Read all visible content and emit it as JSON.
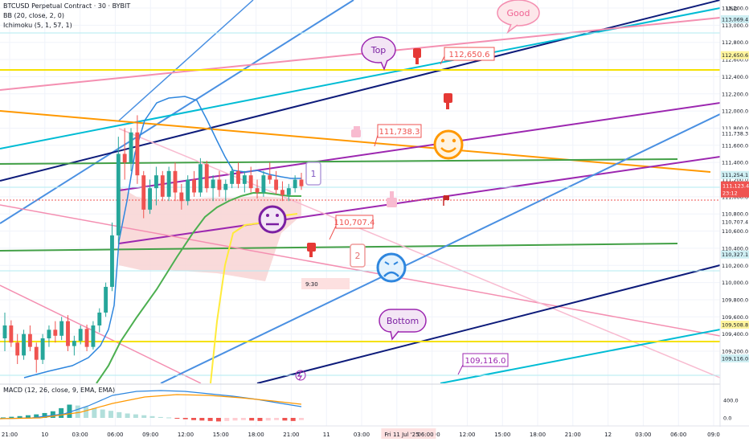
{
  "header": {
    "symbol_line": "BTCUSD Perpetual Contract · 30 · BYBIT",
    "bb_line": "BB (20, close, 2, 0)",
    "ichimoku_line": "Ichimoku (5, 1, 57, 1)",
    "macd_line": "MACD (12, 26, close, 9, EMA, EMA)"
  },
  "price_axis": {
    "currency": "USD",
    "ticks": [
      "113,200.0",
      "113,000.0",
      "112,800.0",
      "112,600.0",
      "112,400.0",
      "112,200.0",
      "112,000.0",
      "111,800.0",
      "111,600.0",
      "111,400.0",
      "111,200.0",
      "111,000.0",
      "110,800.0",
      "110,600.0",
      "110,400.0",
      "110,200.0",
      "110,000.0",
      "109,800.0",
      "109,600.0",
      "109,400.0",
      "109,200.0"
    ],
    "tick_values": [
      113200,
      113000,
      112800,
      112600,
      112400,
      112200,
      112000,
      111800,
      111600,
      111400,
      111200,
      111000,
      110800,
      110600,
      110400,
      110200,
      110000,
      109800,
      109600,
      109400,
      109200
    ],
    "badges": [
      {
        "label": "113,069.4",
        "value": 113069.4,
        "kind": "cyan"
      },
      {
        "label": "112,650.6",
        "value": 112650.6,
        "kind": "yellow"
      },
      {
        "label": "111,738.3",
        "value": 111738.3,
        "kind": "plain"
      },
      {
        "label": "111,254.1",
        "value": 111254.1,
        "kind": "cyan"
      },
      {
        "label": "110,707.4",
        "value": 110707.4,
        "kind": "plain"
      },
      {
        "label": "110,327.1",
        "value": 110327.1,
        "kind": "cyan"
      },
      {
        "label": "109,508.8",
        "value": 109508.8,
        "kind": "yellow"
      },
      {
        "label": "109,116.0",
        "value": 109116.0,
        "kind": "cyan"
      }
    ],
    "current": {
      "label": "111,123.4",
      "value": 111123.4,
      "countdown": "23:12"
    }
  },
  "macd_axis": {
    "ticks": [
      "400.0",
      "0.0"
    ],
    "tick_values": [
      400,
      0
    ]
  },
  "time_axis": {
    "labels": [
      "21:00",
      "10",
      "03:00",
      "06:00",
      "09:00",
      "12:00",
      "15:00",
      "18:00",
      "21:00",
      "11",
      "03:00",
      "06:00",
      "09:00",
      "12:00",
      "15:00",
      "18:00",
      "21:00",
      "12",
      "03:00",
      "06:00",
      "09:0"
    ],
    "hours": [
      0,
      3,
      6,
      9,
      12,
      15,
      18,
      21,
      24,
      27,
      30,
      33,
      36,
      39,
      42,
      45,
      48,
      51,
      54,
      57,
      60
    ],
    "highlight": "Fri 11 Jul '25",
    "highlight_hour": 34,
    "countdown_hour": 24,
    "countdown_label": "9:30"
  },
  "annotations": {
    "good": "Good",
    "top": "Top",
    "bottom": "Bottom",
    "label_1": "1",
    "label_2": "2",
    "price_labels": [
      {
        "text": "112,650.6",
        "value": 112650.6
      },
      {
        "text": "111,738.3",
        "value": 111738.3
      },
      {
        "text": "110,707.4",
        "value": 110707.4
      },
      {
        "text": "109,116.0",
        "value": 109116.0
      }
    ]
  },
  "colors": {
    "bull": "#26a69a",
    "bear": "#ef5350",
    "cloud": "#f8d4d4",
    "bb": "#2e86de",
    "ma_green": "#4caf50",
    "ma_yellow": "#ffeb3b",
    "orange": "#ff9800",
    "purple": "#9c27b0",
    "navy": "#0d1b7a",
    "cyan": "#00bcd4",
    "pink": "#f48fb1",
    "lightblue": "#4a90e2",
    "yellow": "#f5e100",
    "dark_green": "#43a047",
    "macd": "#2e86de",
    "signal": "#ff9800"
  },
  "chart_data": {
    "type": "candlestick",
    "timeframe": "30",
    "current_price": 111123.4,
    "ohlc": [
      [
        109350,
        109650,
        109200,
        109500
      ],
      [
        109500,
        109560,
        109250,
        109300
      ],
      [
        109300,
        109400,
        109050,
        109150
      ],
      [
        109150,
        109450,
        109100,
        109400
      ],
      [
        109400,
        109500,
        109200,
        109250
      ],
      [
        109250,
        109300,
        108950,
        109100
      ],
      [
        109100,
        109400,
        109050,
        109350
      ],
      [
        109350,
        109500,
        109250,
        109450
      ],
      [
        109450,
        109550,
        109300,
        109380
      ],
      [
        109380,
        109600,
        109330,
        109550
      ],
      [
        109550,
        109620,
        109200,
        109260
      ],
      [
        109260,
        109380,
        109150,
        109320
      ],
      [
        109320,
        109500,
        109280,
        109460
      ],
      [
        109460,
        109510,
        109200,
        109250
      ],
      [
        109250,
        109550,
        109220,
        109500
      ],
      [
        109500,
        109700,
        109420,
        109650
      ],
      [
        109650,
        110000,
        109600,
        109950
      ],
      [
        109950,
        110700,
        109900,
        110550
      ],
      [
        110550,
        111700,
        110450,
        111500
      ],
      [
        111500,
        111800,
        111200,
        111400
      ],
      [
        111400,
        111800,
        111300,
        111750
      ],
      [
        111750,
        111950,
        111150,
        111250
      ],
      [
        111250,
        111300,
        110750,
        110850
      ],
      [
        110850,
        111200,
        110800,
        111100
      ],
      [
        111100,
        111350,
        110900,
        111250
      ],
      [
        111250,
        111300,
        110950,
        111000
      ],
      [
        111000,
        111350,
        110950,
        111300
      ],
      [
        111300,
        111400,
        110950,
        111050
      ],
      [
        111050,
        111150,
        110850,
        110950
      ],
      [
        110950,
        111250,
        110900,
        111200
      ],
      [
        111200,
        111300,
        111000,
        111050
      ],
      [
        111050,
        111450,
        111000,
        111380
      ],
      [
        111380,
        111420,
        111050,
        111100
      ],
      [
        111100,
        111250,
        110950,
        111200
      ],
      [
        111200,
        111300,
        111000,
        111080
      ],
      [
        111080,
        111200,
        110950,
        111150
      ],
      [
        111150,
        111350,
        111100,
        111300
      ],
      [
        111300,
        111400,
        111100,
        111150
      ],
      [
        111150,
        111300,
        111050,
        111250
      ],
      [
        111250,
        111350,
        111050,
        111100
      ],
      [
        111100,
        111200,
        110980,
        111050
      ],
      [
        111050,
        111300,
        111000,
        111250
      ],
      [
        111250,
        111400,
        111150,
        111200
      ],
      [
        111200,
        111300,
        111030,
        111080
      ],
      [
        111080,
        111180,
        110950,
        111020
      ],
      [
        111020,
        111150,
        110950,
        111100
      ],
      [
        111100,
        111250,
        111050,
        111200
      ],
      [
        111200,
        111280,
        111080,
        111123.4
      ]
    ],
    "macd_histogram": [
      10,
      25,
      40,
      60,
      80,
      110,
      150,
      220,
      300,
      280,
      250,
      220,
      190,
      160,
      130,
      100,
      80,
      60,
      40,
      20,
      10,
      -10,
      -30,
      -50,
      -60,
      -70,
      -80,
      -70,
      -60,
      -50,
      -60,
      -70,
      -60,
      -50,
      -60,
      -70,
      -50
    ]
  }
}
